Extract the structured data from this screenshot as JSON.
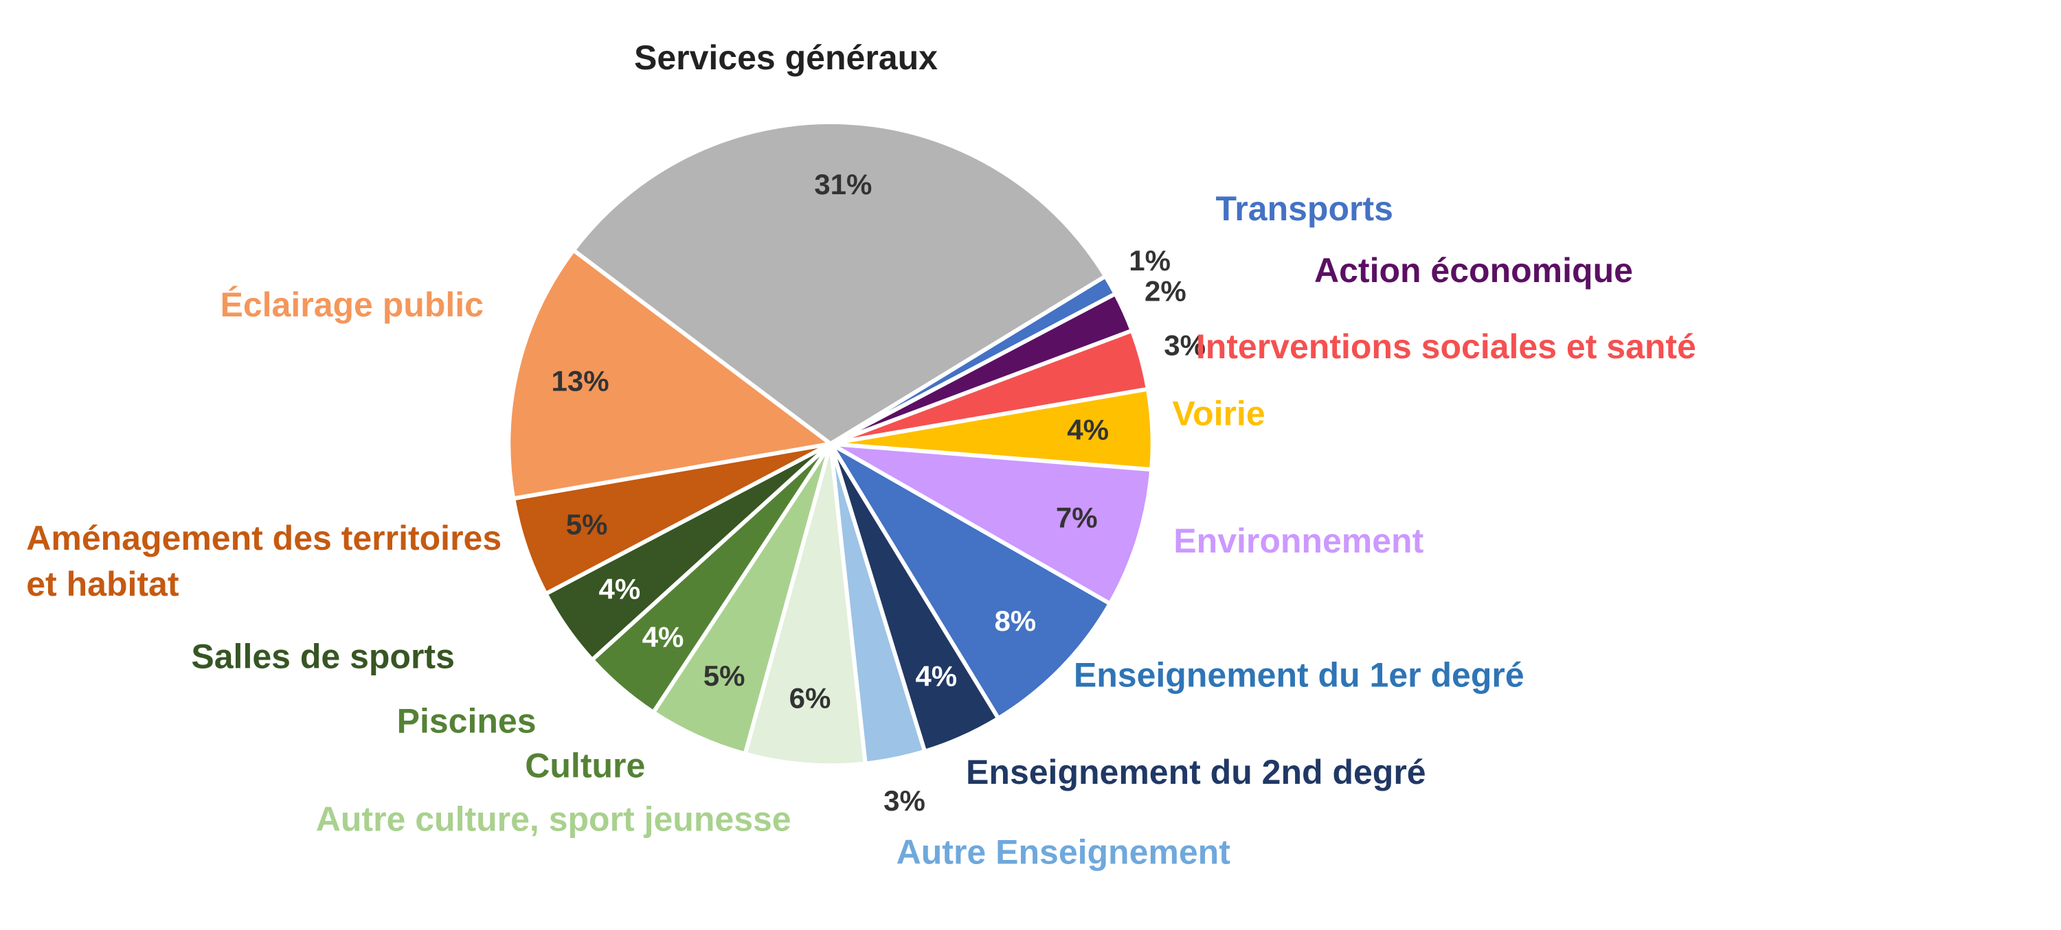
{
  "chart_data": {
    "type": "pie",
    "categories": [
      "Services généraux",
      "Transports",
      "Action économique",
      "Interventions sociales et santé",
      "Voirie",
      "Environnement",
      "Enseignement du 1er degré",
      "Enseignement du 2nd degré",
      "Autre Enseignement",
      "Autre culture, sport jeunesse",
      "Culture",
      "Piscines",
      "Salles de sports",
      "Aménagement des territoires et habitat",
      "Éclairage public"
    ],
    "values": [
      31,
      1,
      2,
      3,
      4,
      7,
      8,
      4,
      3,
      6,
      5,
      4,
      4,
      5,
      13
    ],
    "value_labels": [
      "31%",
      "1%",
      "2%",
      "3%",
      "4%",
      "7%",
      "8%",
      "4%",
      "3%",
      "6%",
      "5%",
      "4%",
      "4%",
      "5%",
      "13%"
    ],
    "colors": [
      "#b4b4b4",
      "#4472c4",
      "#5b0f63",
      "#f55050",
      "#ffc000",
      "#cc99ff",
      "#4472c4",
      "#203864",
      "#9dc3e6",
      "#e2efda",
      "#a9d18e",
      "#548235",
      "#375623",
      "#c55a11",
      "#f4975b"
    ],
    "label_colors": [
      "#222222",
      "#4472c4",
      "#5b0f63",
      "#f55050",
      "#ffc000",
      "#cc99ff",
      "#2e75b6",
      "#203864",
      "#6fa8dc",
      "#a9d18e",
      "#548235",
      "#548235",
      "#375623",
      "#c55a11",
      "#f4975b"
    ]
  }
}
